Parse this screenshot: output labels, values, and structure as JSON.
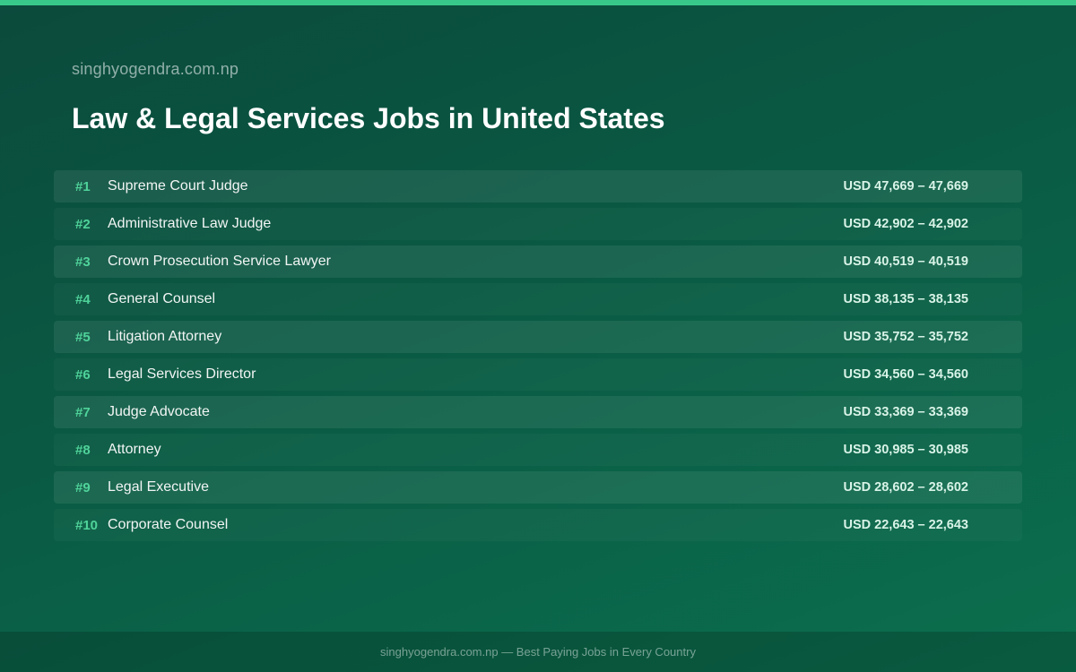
{
  "header": {
    "site_name": "singhyogendra.com.np",
    "title": "Law & Legal Services Jobs in United States"
  },
  "jobs": [
    {
      "rank": "#1",
      "title": "Supreme Court Judge",
      "salary": "USD 47,669 – 47,669"
    },
    {
      "rank": "#2",
      "title": "Administrative Law Judge",
      "salary": "USD 42,902 – 42,902"
    },
    {
      "rank": "#3",
      "title": "Crown Prosecution Service Lawyer",
      "salary": "USD 40,519 – 40,519"
    },
    {
      "rank": "#4",
      "title": "General Counsel",
      "salary": "USD 38,135 – 38,135"
    },
    {
      "rank": "#5",
      "title": "Litigation Attorney",
      "salary": "USD 35,752 – 35,752"
    },
    {
      "rank": "#6",
      "title": "Legal Services Director",
      "salary": "USD 34,560 – 34,560"
    },
    {
      "rank": "#7",
      "title": "Judge Advocate",
      "salary": "USD 33,369 – 33,369"
    },
    {
      "rank": "#8",
      "title": "Attorney",
      "salary": "USD 30,985 – 30,985"
    },
    {
      "rank": "#9",
      "title": "Legal Executive",
      "salary": "USD 28,602 – 28,602"
    },
    {
      "rank": "#10",
      "title": "Corporate Counsel",
      "salary": "USD 22,643 – 22,643"
    }
  ],
  "footer": {
    "text": "singhyogendra.com.np — Best Paying Jobs in Every Country"
  },
  "colors": {
    "accent": "#38c98a",
    "rank": "#4fd39a",
    "background_start": "#0b4a3c",
    "background_end": "#0b6f4e"
  }
}
